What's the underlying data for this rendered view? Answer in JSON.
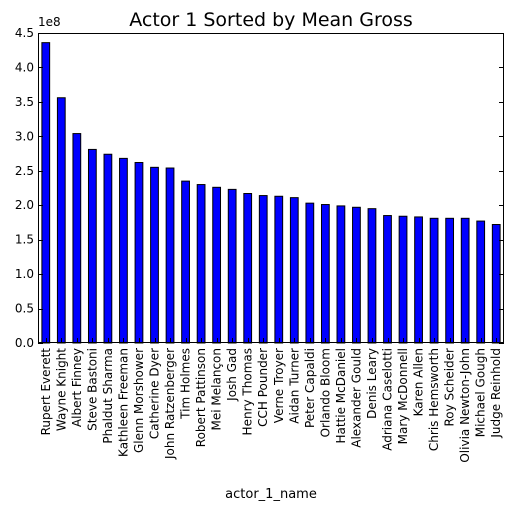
{
  "chart_data": {
    "type": "bar",
    "title": "Actor 1 Sorted by Mean Gross",
    "xlabel": "actor_1_name",
    "ylabel": "",
    "y_offset_label": "1e8",
    "y_scale": 100000000,
    "ylim": [
      0,
      4.5
    ],
    "yticks": [
      "0.0",
      "0.5",
      "1.0",
      "1.5",
      "2.0",
      "2.5",
      "3.0",
      "3.5",
      "4.0",
      "4.5"
    ],
    "grid": false,
    "legend": "none",
    "bar_color": "#0000ff",
    "categories": [
      "Rupert Everett",
      "Wayne Knight",
      "Albert Finney",
      "Steve Bastoni",
      "Phaldut Sharma",
      "Kathleen Freeman",
      "Glenn Morshower",
      "Catherine Dyer",
      "John Ratzenberger",
      "Tim Holmes",
      "Robert Pattinson",
      "Mei Melançon",
      "Josh Gad",
      "Henry Thomas",
      "CCH Pounder",
      "Verne Troyer",
      "Aidan Turner",
      "Peter Capaldi",
      "Orlando Bloom",
      "Hattie McDaniel",
      "Alexander Gould",
      "Denis Leary",
      "Adriana Caselotti",
      "Mary McDonnell",
      "Karen Allen",
      "Chris Hemsworth",
      "Roy Scheider",
      "Olivia Newton-John",
      "Michael Gough",
      "Judge Reinhold"
    ],
    "values": [
      4.36,
      3.56,
      3.04,
      2.81,
      2.74,
      2.68,
      2.62,
      2.55,
      2.54,
      2.35,
      2.3,
      2.26,
      2.23,
      2.17,
      2.14,
      2.13,
      2.11,
      2.03,
      2.01,
      1.99,
      1.97,
      1.95,
      1.85,
      1.84,
      1.83,
      1.81,
      1.81,
      1.81,
      1.77,
      1.72
    ]
  }
}
